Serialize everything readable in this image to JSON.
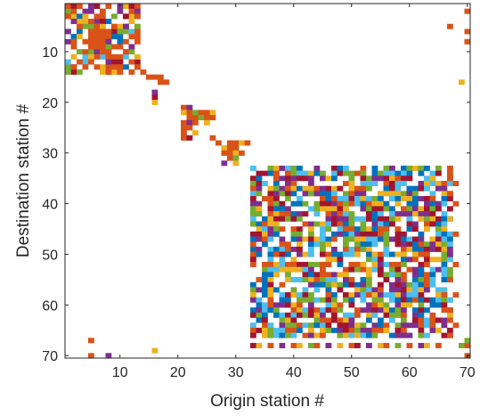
{
  "chart_data": {
    "type": "heatmap",
    "title": "",
    "xlabel": "Origin station #",
    "ylabel": "Destination station #",
    "xlim": [
      0.5,
      70.5
    ],
    "ylim": [
      0.5,
      70.5
    ],
    "y_reversed": true,
    "grid": false,
    "xticks": [
      10,
      20,
      30,
      40,
      50,
      60,
      70
    ],
    "yticks": [
      10,
      20,
      30,
      40,
      50,
      60,
      70
    ],
    "palette": [
      "#A2142F",
      "#D95319",
      "#EDB120",
      "#7E2F8E",
      "#77AC30",
      "#4DBEEE",
      "#0072BD"
    ],
    "blocks": [
      {
        "x": [
          1,
          13
        ],
        "y": [
          1,
          14
        ],
        "density": 0.42
      },
      {
        "x": [
          33,
          67
        ],
        "y": [
          33,
          66
        ],
        "density": 0.74
      }
    ],
    "cells": [
      [
        1,
        1,
        1
      ],
      [
        2,
        1,
        0
      ],
      [
        3,
        1,
        1
      ],
      [
        5,
        1,
        3
      ],
      [
        6,
        1,
        0
      ],
      [
        8,
        1,
        1
      ],
      [
        10,
        1,
        3
      ],
      [
        12,
        1,
        0
      ],
      [
        13,
        1,
        1
      ],
      [
        2,
        2,
        1
      ],
      [
        4,
        2,
        3
      ],
      [
        7,
        2,
        1
      ],
      [
        10,
        2,
        3
      ],
      [
        12,
        2,
        1
      ],
      [
        13,
        2,
        3
      ],
      [
        70,
        2,
        1
      ],
      [
        1,
        3,
        1
      ],
      [
        4,
        3,
        2
      ],
      [
        6,
        3,
        1
      ],
      [
        9,
        3,
        4
      ],
      [
        11,
        3,
        0
      ],
      [
        13,
        3,
        1
      ],
      [
        2,
        4,
        3
      ],
      [
        5,
        4,
        1
      ],
      [
        7,
        4,
        0
      ],
      [
        12,
        4,
        2
      ],
      [
        3,
        5,
        1
      ],
      [
        6,
        5,
        1
      ],
      [
        7,
        5,
        2
      ],
      [
        9,
        5,
        1
      ],
      [
        11,
        5,
        3
      ],
      [
        67,
        5,
        1
      ],
      [
        5,
        6,
        1
      ],
      [
        6,
        6,
        1
      ],
      [
        7,
        6,
        1
      ],
      [
        8,
        6,
        1
      ],
      [
        10,
        6,
        4
      ],
      [
        13,
        6,
        1
      ],
      [
        70,
        6,
        1
      ],
      [
        3,
        7,
        2
      ],
      [
        5,
        7,
        1
      ],
      [
        6,
        7,
        1
      ],
      [
        7,
        7,
        1
      ],
      [
        8,
        7,
        1
      ],
      [
        12,
        7,
        1
      ],
      [
        2,
        8,
        1
      ],
      [
        4,
        8,
        1
      ],
      [
        5,
        8,
        1
      ],
      [
        6,
        8,
        1
      ],
      [
        7,
        8,
        1
      ],
      [
        8,
        8,
        3
      ],
      [
        11,
        8,
        1
      ],
      [
        13,
        8,
        1
      ],
      [
        70,
        8,
        1
      ],
      [
        5,
        9,
        1
      ],
      [
        6,
        9,
        1
      ],
      [
        7,
        9,
        1
      ],
      [
        9,
        9,
        1
      ],
      [
        10,
        9,
        1
      ],
      [
        12,
        9,
        3
      ],
      [
        3,
        10,
        4
      ],
      [
        4,
        10,
        1
      ],
      [
        7,
        10,
        1
      ],
      [
        8,
        10,
        1
      ],
      [
        11,
        10,
        1
      ],
      [
        2,
        11,
        2
      ],
      [
        6,
        11,
        1
      ],
      [
        9,
        11,
        1
      ],
      [
        10,
        11,
        1
      ],
      [
        13,
        11,
        2
      ],
      [
        1,
        12,
        5
      ],
      [
        3,
        12,
        1
      ],
      [
        5,
        12,
        1
      ],
      [
        8,
        12,
        3
      ],
      [
        12,
        12,
        1
      ],
      [
        2,
        13,
        1
      ],
      [
        4,
        13,
        1
      ],
      [
        6,
        13,
        1
      ],
      [
        9,
        13,
        1
      ],
      [
        10,
        13,
        1
      ],
      [
        13,
        13,
        1
      ],
      [
        1,
        14,
        4
      ],
      [
        8,
        14,
        1
      ],
      [
        12,
        14,
        1
      ],
      [
        14,
        14,
        1
      ],
      [
        15,
        15,
        1
      ],
      [
        16,
        15,
        1
      ],
      [
        17,
        15,
        1
      ],
      [
        69,
        16,
        2
      ],
      [
        17,
        16,
        1
      ],
      [
        18,
        16,
        1
      ],
      [
        16,
        18,
        3
      ],
      [
        16,
        19,
        0
      ],
      [
        16,
        20,
        2
      ],
      [
        21,
        21,
        1
      ],
      [
        22,
        21,
        3
      ],
      [
        21,
        22,
        2
      ],
      [
        22,
        22,
        1
      ],
      [
        23,
        22,
        4
      ],
      [
        24,
        22,
        1
      ],
      [
        25,
        22,
        1
      ],
      [
        26,
        22,
        2
      ],
      [
        22,
        23,
        1
      ],
      [
        23,
        23,
        1
      ],
      [
        24,
        23,
        4
      ],
      [
        25,
        23,
        1
      ],
      [
        26,
        23,
        1
      ],
      [
        21,
        24,
        1
      ],
      [
        22,
        24,
        3
      ],
      [
        23,
        24,
        1
      ],
      [
        25,
        24,
        2
      ],
      [
        21,
        25,
        1
      ],
      [
        22,
        25,
        1
      ],
      [
        21,
        26,
        1
      ],
      [
        23,
        26,
        2
      ],
      [
        21,
        27,
        1
      ],
      [
        22,
        27,
        0
      ],
      [
        26,
        27,
        1
      ],
      [
        27,
        28,
        1
      ],
      [
        29,
        28,
        1
      ],
      [
        30,
        28,
        1
      ],
      [
        31,
        28,
        2
      ],
      [
        32,
        28,
        1
      ],
      [
        28,
        29,
        2
      ],
      [
        29,
        29,
        1
      ],
      [
        30,
        29,
        1
      ],
      [
        28,
        30,
        1
      ],
      [
        29,
        30,
        1
      ],
      [
        30,
        30,
        2
      ],
      [
        31,
        30,
        1
      ],
      [
        29,
        31,
        1
      ],
      [
        30,
        31,
        4
      ],
      [
        28,
        32,
        3
      ],
      [
        30,
        32,
        2
      ],
      [
        67,
        33,
        1
      ],
      [
        67,
        34,
        1
      ],
      [
        67,
        35,
        1
      ],
      [
        68,
        36,
        1
      ],
      [
        67,
        38,
        1
      ],
      [
        68,
        40,
        1
      ],
      [
        67,
        43,
        2
      ],
      [
        68,
        46,
        1
      ],
      [
        67,
        50,
        3
      ],
      [
        68,
        52,
        1
      ],
      [
        67,
        55,
        1
      ],
      [
        68,
        58,
        1
      ],
      [
        67,
        61,
        1
      ],
      [
        68,
        64,
        1
      ],
      [
        67,
        66,
        1
      ],
      [
        33,
        68,
        0
      ],
      [
        34,
        68,
        2
      ],
      [
        36,
        68,
        1
      ],
      [
        38,
        68,
        3
      ],
      [
        40,
        68,
        1
      ],
      [
        41,
        68,
        2
      ],
      [
        43,
        68,
        4
      ],
      [
        44,
        68,
        1
      ],
      [
        46,
        68,
        3
      ],
      [
        48,
        68,
        2
      ],
      [
        50,
        68,
        1
      ],
      [
        51,
        68,
        0
      ],
      [
        53,
        68,
        3
      ],
      [
        55,
        68,
        2
      ],
      [
        56,
        68,
        1
      ],
      [
        58,
        68,
        4
      ],
      [
        60,
        68,
        1
      ],
      [
        62,
        68,
        3
      ],
      [
        63,
        68,
        2
      ],
      [
        65,
        68,
        1
      ],
      [
        69,
        68,
        4
      ],
      [
        70,
        68,
        1
      ],
      [
        5,
        67,
        1
      ],
      [
        70,
        67,
        4
      ],
      [
        16,
        69,
        2
      ],
      [
        5,
        70,
        1
      ],
      [
        8,
        70,
        3
      ],
      [
        70,
        70,
        1
      ]
    ]
  }
}
